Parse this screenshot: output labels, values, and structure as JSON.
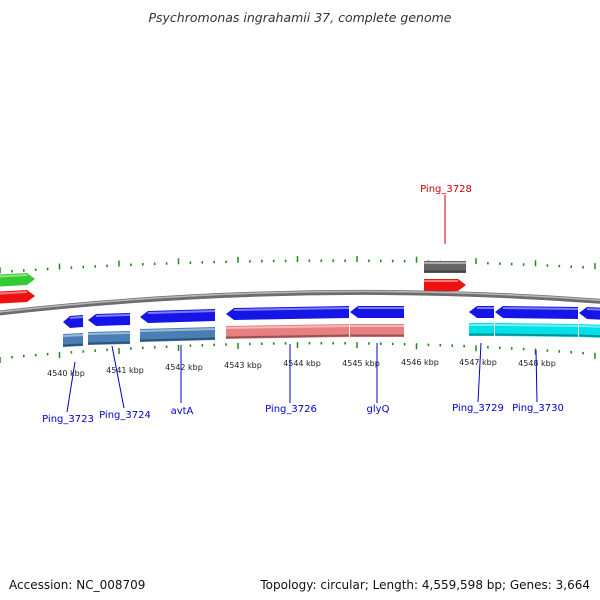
{
  "title": "Psychromonas ingrahamii 37, complete genome",
  "footer": {
    "accession": "Accession: NC_008709",
    "summary": "Topology: circular; Length: 4,559,598 bp; Genes: 3,664"
  },
  "colors": {
    "backbone": "#888888",
    "cds_blue": "#1515e8",
    "steelblue": "#4a7fb5",
    "salmon": "#e88080",
    "cyan": "#00e0e8",
    "gray": "#666666",
    "red": "#ee1111",
    "green": "#33cc33",
    "tick": "#1e8a1e",
    "label_blue": "#0000cc",
    "label_red": "#cc0000"
  },
  "tick_labels": [
    "4540 kbp",
    "4541 kbp",
    "4542 kbp",
    "4543 kbp",
    "4544 kbp",
    "4545 kbp",
    "4546 kbp",
    "4547 kbp",
    "4548 kbp"
  ],
  "gene_labels": [
    {
      "text": "Ping_3723",
      "color": "label_blue"
    },
    {
      "text": "Ping_3724",
      "color": "label_blue"
    },
    {
      "text": "avtA",
      "color": "label_blue"
    },
    {
      "text": "Ping_3726",
      "color": "label_blue"
    },
    {
      "text": "glyQ",
      "color": "label_blue"
    },
    {
      "text": "Ping_3728",
      "color": "label_red"
    },
    {
      "text": "Ping_3729",
      "color": "label_blue"
    },
    {
      "text": "Ping_3730",
      "color": "label_blue"
    }
  ],
  "features": [
    {
      "name": "green-feature",
      "color": "green",
      "shape": "arrow-right",
      "track": "plus-outer"
    },
    {
      "name": "red-feature",
      "color": "red",
      "shape": "arrow-right",
      "track": "plus-inner"
    },
    {
      "name": "Ping_3728-gene",
      "color": "gray",
      "shape": "rect",
      "track": "plus-outer"
    },
    {
      "name": "Ping_3728-cds",
      "color": "red",
      "shape": "arrow-right",
      "track": "plus-inner"
    },
    {
      "name": "Ping_3723-cds",
      "color": "cds_blue",
      "shape": "arrow-left",
      "track": "minus-inner"
    },
    {
      "name": "Ping_3723-gene",
      "color": "steelblue",
      "shape": "rect",
      "track": "minus-outer"
    },
    {
      "name": "Ping_3724-cds",
      "color": "cds_blue",
      "shape": "arrow-left",
      "track": "minus-inner"
    },
    {
      "name": "Ping_3724-gene",
      "color": "steelblue",
      "shape": "rect",
      "track": "minus-outer"
    },
    {
      "name": "avtA-cds",
      "color": "cds_blue",
      "shape": "arrow-left",
      "track": "minus-inner"
    },
    {
      "name": "avtA-gene",
      "color": "steelblue",
      "shape": "rect",
      "track": "minus-outer"
    },
    {
      "name": "Ping_3726-cds",
      "color": "cds_blue",
      "shape": "arrow-left",
      "track": "minus-inner"
    },
    {
      "name": "Ping_3726-gene",
      "color": "salmon",
      "shape": "rect",
      "track": "minus-outer"
    },
    {
      "name": "glyQ-cds",
      "color": "cds_blue",
      "shape": "arrow-left",
      "track": "minus-inner"
    },
    {
      "name": "glyQ-gene",
      "color": "salmon",
      "shape": "rect",
      "track": "minus-outer"
    },
    {
      "name": "Ping_3729-cds",
      "color": "cds_blue",
      "shape": "arrow-left",
      "track": "minus-inner"
    },
    {
      "name": "Ping_3729-gene",
      "color": "cyan",
      "shape": "rect",
      "track": "minus-outer"
    },
    {
      "name": "Ping_3730-cds",
      "color": "cds_blue",
      "shape": "arrow-left",
      "track": "minus-inner"
    },
    {
      "name": "Ping_3730-gene",
      "color": "cyan",
      "shape": "rect",
      "track": "minus-outer"
    },
    {
      "name": "next-cds",
      "color": "cds_blue",
      "shape": "arrow-left",
      "track": "minus-inner"
    },
    {
      "name": "next-gene",
      "color": "cyan",
      "shape": "rect",
      "track": "minus-outer"
    }
  ]
}
